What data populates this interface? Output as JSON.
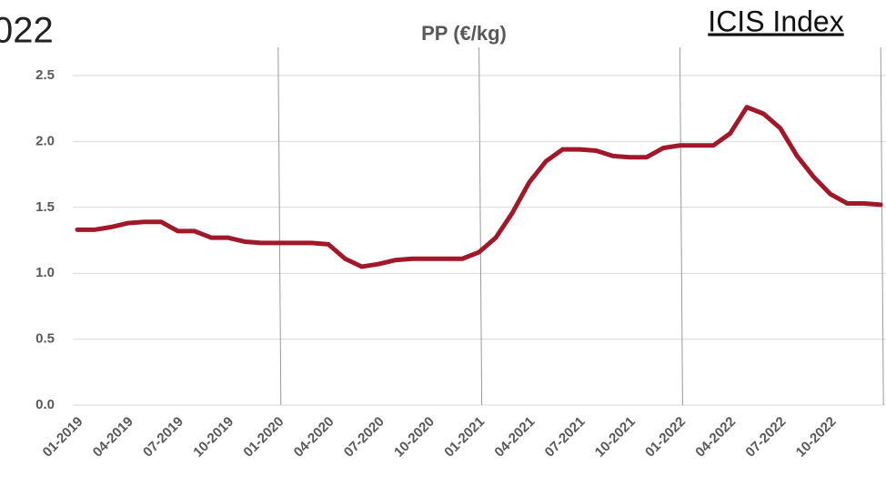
{
  "corner_text": "022",
  "index_link": "ICIS Index",
  "chart_data": {
    "type": "line",
    "title": "PP (€/kg)",
    "categories": [
      "01-2019",
      null,
      null,
      "04-2019",
      null,
      null,
      "07-2019",
      null,
      null,
      "10-2019",
      null,
      null,
      "01-2020",
      null,
      null,
      "04-2020",
      null,
      null,
      "07-2020",
      null,
      null,
      "10-2020",
      null,
      null,
      "01-2021",
      null,
      null,
      "04-2021",
      null,
      null,
      "07-2021",
      null,
      null,
      "10-2021",
      null,
      null,
      "01-2022",
      null,
      null,
      "04-2022",
      null,
      null,
      "07-2022",
      null,
      null,
      "10-2022",
      null,
      null,
      null
    ],
    "series": [
      {
        "name": "PP",
        "color": "#a0182a",
        "values": [
          1.33,
          1.33,
          1.35,
          1.38,
          1.39,
          1.39,
          1.32,
          1.32,
          1.27,
          1.27,
          1.24,
          1.23,
          1.23,
          1.23,
          1.23,
          1.22,
          1.11,
          1.05,
          1.07,
          1.1,
          1.11,
          1.11,
          1.11,
          1.11,
          1.16,
          1.27,
          1.46,
          1.69,
          1.85,
          1.94,
          1.94,
          1.93,
          1.89,
          1.88,
          1.88,
          1.95,
          1.97,
          1.97,
          1.97,
          2.06,
          2.26,
          2.21,
          2.1,
          1.89,
          1.73,
          1.6,
          1.53,
          1.53,
          1.52
        ]
      }
    ],
    "ylim": [
      0,
      2.5
    ],
    "yticks": [
      {
        "value": 0,
        "label": "0.0"
      },
      0.5,
      {
        "value": 1,
        "label": "1.0"
      },
      1.5,
      {
        "value": 2,
        "label": "2.0"
      },
      2.5
    ],
    "grid": true
  }
}
